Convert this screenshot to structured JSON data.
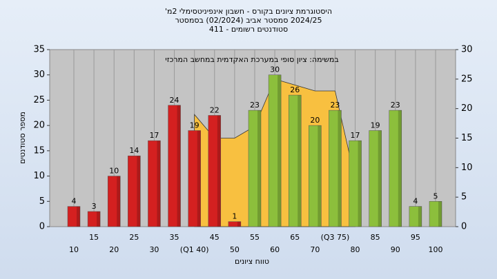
{
  "chart_data": {
    "type": "bar",
    "title": [
      "היסטוגרמת ציונים בקורס - חשבון אינפיניטסימלי 2מ'",
      "2024/25 סמסטר אביב  (02/2024)  בסמסטר",
      "סטודנטים רשומים - 411"
    ],
    "annotation": "במשימה: ציון סופי במערכת האקדמית במחשב המרכזי",
    "xlabel": "טווח ציונים",
    "ylabel": "מספר סטודנטים",
    "categories": [
      "10",
      "15",
      "20",
      "25",
      "30",
      "35",
      "(Q1 40)",
      "45",
      "50",
      "55",
      "60",
      "65",
      "70",
      "(Q3 75)",
      "80",
      "85",
      "90",
      "95",
      "100"
    ],
    "series": [
      {
        "values": [
          4,
          3,
          10,
          14,
          17,
          24,
          19,
          22,
          1,
          23,
          30,
          26,
          20,
          23,
          17,
          19,
          23,
          4,
          5
        ],
        "colors": [
          "#d42020",
          "#d42020",
          "#d42020",
          "#d42020",
          "#d42020",
          "#d42020",
          "#d42020",
          "#d42020",
          "#d42020",
          "#8cbf3c",
          "#8cbf3c",
          "#8cbf3c",
          "#8cbf3c",
          "#8cbf3c",
          "#8cbf3c",
          "#8cbf3c",
          "#8cbf3c",
          "#8cbf3c",
          "#8cbf3c"
        ]
      },
      {
        "type": "area",
        "axis": "y2",
        "color": "#f8c040",
        "values": [
          null,
          null,
          null,
          null,
          null,
          null,
          19,
          15,
          15,
          17,
          25,
          24,
          23,
          23,
          8,
          null,
          null,
          null,
          null
        ]
      }
    ],
    "ylim": [
      0,
      35
    ],
    "yticks": [
      0,
      5,
      10,
      15,
      20,
      25,
      30,
      35
    ],
    "y2lim": [
      0,
      30
    ],
    "y2ticks": [
      0,
      5,
      10,
      15,
      20,
      25,
      30
    ],
    "grid": true
  }
}
